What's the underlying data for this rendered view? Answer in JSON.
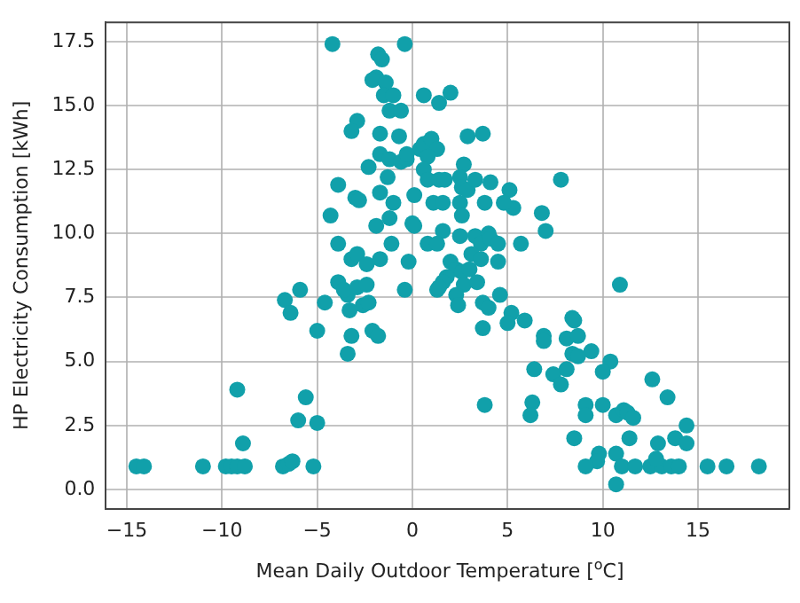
{
  "chart_data": {
    "type": "scatter",
    "xlabel": "Mean Daily Outdoor Temperature [$^{o}$C]",
    "ylabel": "HP Electricity Consumption [kWh]",
    "marker": "circle",
    "grid": true,
    "legend": false,
    "xlim": [
      -16.1,
      19.8
    ],
    "ylim": [
      -0.75,
      18.25
    ],
    "xticks": [
      {
        "value": -15,
        "label": "−15"
      },
      {
        "value": -10,
        "label": "−10"
      },
      {
        "value": -5,
        "label": "−5"
      },
      0,
      5,
      10,
      15
    ],
    "yticks": [
      {
        "value": 0,
        "label": "0.0"
      },
      2.5,
      {
        "value": 5,
        "label": "5.0"
      },
      7.5,
      {
        "value": 10,
        "label": "10.0"
      },
      12.5,
      {
        "value": 15,
        "label": "15.0"
      },
      17.5
    ],
    "series": [
      {
        "color": "#11a0aa",
        "x": [
          -14.5,
          -14.1,
          -11,
          -9.8,
          -9.5,
          -9.2,
          -8.8,
          -6.8,
          -6.5,
          -6.3,
          -5.2,
          -9.2,
          -8.9,
          -5.6,
          -6,
          -5,
          -6.7,
          -6.4,
          -5.9,
          -5,
          -4.6,
          -3.2,
          -3.4,
          -2.1,
          -1.8,
          -2.6,
          -2.3,
          -3.3,
          -3.4,
          -4.2,
          -0.4,
          -1.8,
          -1.6,
          -1.9,
          -2.1,
          -1.4,
          -1.5,
          -1.0,
          -1.2,
          -0.6,
          0.6,
          1.4,
          2.0,
          -2.9,
          -3.2,
          -1.7,
          -0.7,
          2.9,
          3.7,
          0.4,
          0.6,
          1.0,
          1.3,
          0.8,
          -2.3,
          -1.7,
          -1.2,
          -0.6,
          -0.3,
          -0.3,
          2.7,
          -1.3,
          0.6,
          0.8,
          1.4,
          1.7,
          2.5,
          2.6,
          2.9,
          3.3,
          4.1,
          5.1,
          5.3,
          4.8,
          7.8,
          6.8,
          7.0,
          5.7,
          3.8,
          2.5,
          2.6,
          1.1,
          1.6,
          -3.9,
          -3.0,
          -2.8,
          -1.7,
          -1.0,
          0.1,
          -4.3,
          -1.9,
          -1.2,
          0.0,
          0.1,
          1.6,
          2.5,
          3.3,
          3.6,
          4.0,
          4.1,
          4.5,
          0.8,
          1.3,
          -3.9,
          -1.1,
          -3.2,
          -2.9,
          -2.4,
          -1.7,
          -0.2,
          2.0,
          2.3,
          2.6,
          3.0,
          3.1,
          3.6,
          4.5,
          -3.9,
          -3.6,
          -2.9,
          -2.4,
          1.8,
          1.6,
          1.3,
          2.7,
          3.4,
          10.9,
          -0.4,
          1.4,
          2.3,
          2.4,
          3.7,
          4.0,
          4.6,
          3.7,
          5.2,
          5.0,
          5.9,
          6.9,
          6.9,
          8.1,
          8.4,
          8.5,
          8.7,
          8.4,
          8.7,
          9.4,
          10.4,
          10.0,
          6.4,
          7.4,
          8.1,
          7.8,
          12.6,
          13.4,
          3.8,
          6.3,
          6.2,
          9.1,
          9.1,
          10.0,
          10.7,
          11.1,
          11.3,
          11.6,
          13.8,
          14.4,
          14.4,
          12.9,
          11.4,
          8.5,
          9.8,
          9.7,
          10.7,
          9.1,
          11.0,
          11.7,
          12.5,
          13.1,
          13.6,
          14.0,
          15.5,
          16.5,
          18.2,
          10.7,
          12.8
        ],
        "values": [
          0.9,
          0.9,
          0.9,
          0.9,
          0.9,
          0.9,
          0.9,
          0.9,
          1.0,
          1.1,
          0.9,
          3.9,
          1.8,
          3.6,
          2.7,
          2.6,
          7.4,
          6.9,
          7.8,
          6.2,
          7.3,
          6.0,
          5.3,
          6.2,
          6.0,
          7.2,
          7.3,
          7.0,
          7.6,
          17.4,
          17.4,
          17.0,
          16.8,
          16.1,
          16.0,
          15.9,
          15.4,
          15.4,
          14.8,
          14.8,
          15.4,
          15.1,
          15.5,
          14.4,
          14.0,
          13.9,
          13.8,
          13.8,
          13.9,
          13.3,
          13.5,
          13.7,
          13.3,
          13.0,
          12.6,
          13.1,
          12.9,
          12.8,
          12.9,
          13.1,
          12.7,
          12.2,
          12.5,
          12.1,
          12.1,
          12.1,
          12.2,
          11.8,
          11.7,
          12.1,
          12.0,
          11.7,
          11.0,
          11.2,
          12.1,
          10.8,
          10.1,
          9.6,
          11.2,
          11.2,
          10.7,
          11.2,
          11.2,
          11.9,
          11.4,
          11.3,
          11.6,
          11.2,
          11.5,
          10.7,
          10.3,
          10.6,
          10.4,
          10.3,
          10.1,
          9.9,
          9.9,
          9.6,
          10.0,
          9.8,
          9.6,
          9.6,
          9.6,
          9.6,
          9.6,
          9.0,
          9.2,
          8.8,
          9.0,
          8.9,
          8.9,
          8.6,
          8.5,
          8.6,
          9.2,
          9.0,
          8.9,
          8.1,
          7.8,
          7.9,
          8.0,
          8.3,
          8.1,
          7.8,
          8.0,
          8.1,
          8.0,
          7.8,
          7.9,
          7.6,
          7.2,
          7.3,
          7.1,
          7.6,
          6.3,
          6.9,
          6.5,
          6.6,
          6.0,
          5.8,
          5.9,
          6.7,
          6.6,
          6.0,
          5.3,
          5.2,
          5.4,
          5.0,
          4.6,
          4.7,
          4.5,
          4.7,
          4.1,
          4.3,
          3.6,
          3.3,
          3.4,
          2.9,
          3.3,
          2.9,
          3.3,
          2.9,
          3.1,
          3.0,
          2.8,
          2.0,
          2.5,
          1.8,
          1.8,
          2.0,
          2.0,
          1.4,
          1.1,
          1.4,
          0.9,
          0.9,
          0.9,
          0.9,
          0.9,
          0.9,
          0.9,
          0.9,
          0.9,
          0.9,
          0.2,
          1.2
        ]
      }
    ]
  }
}
